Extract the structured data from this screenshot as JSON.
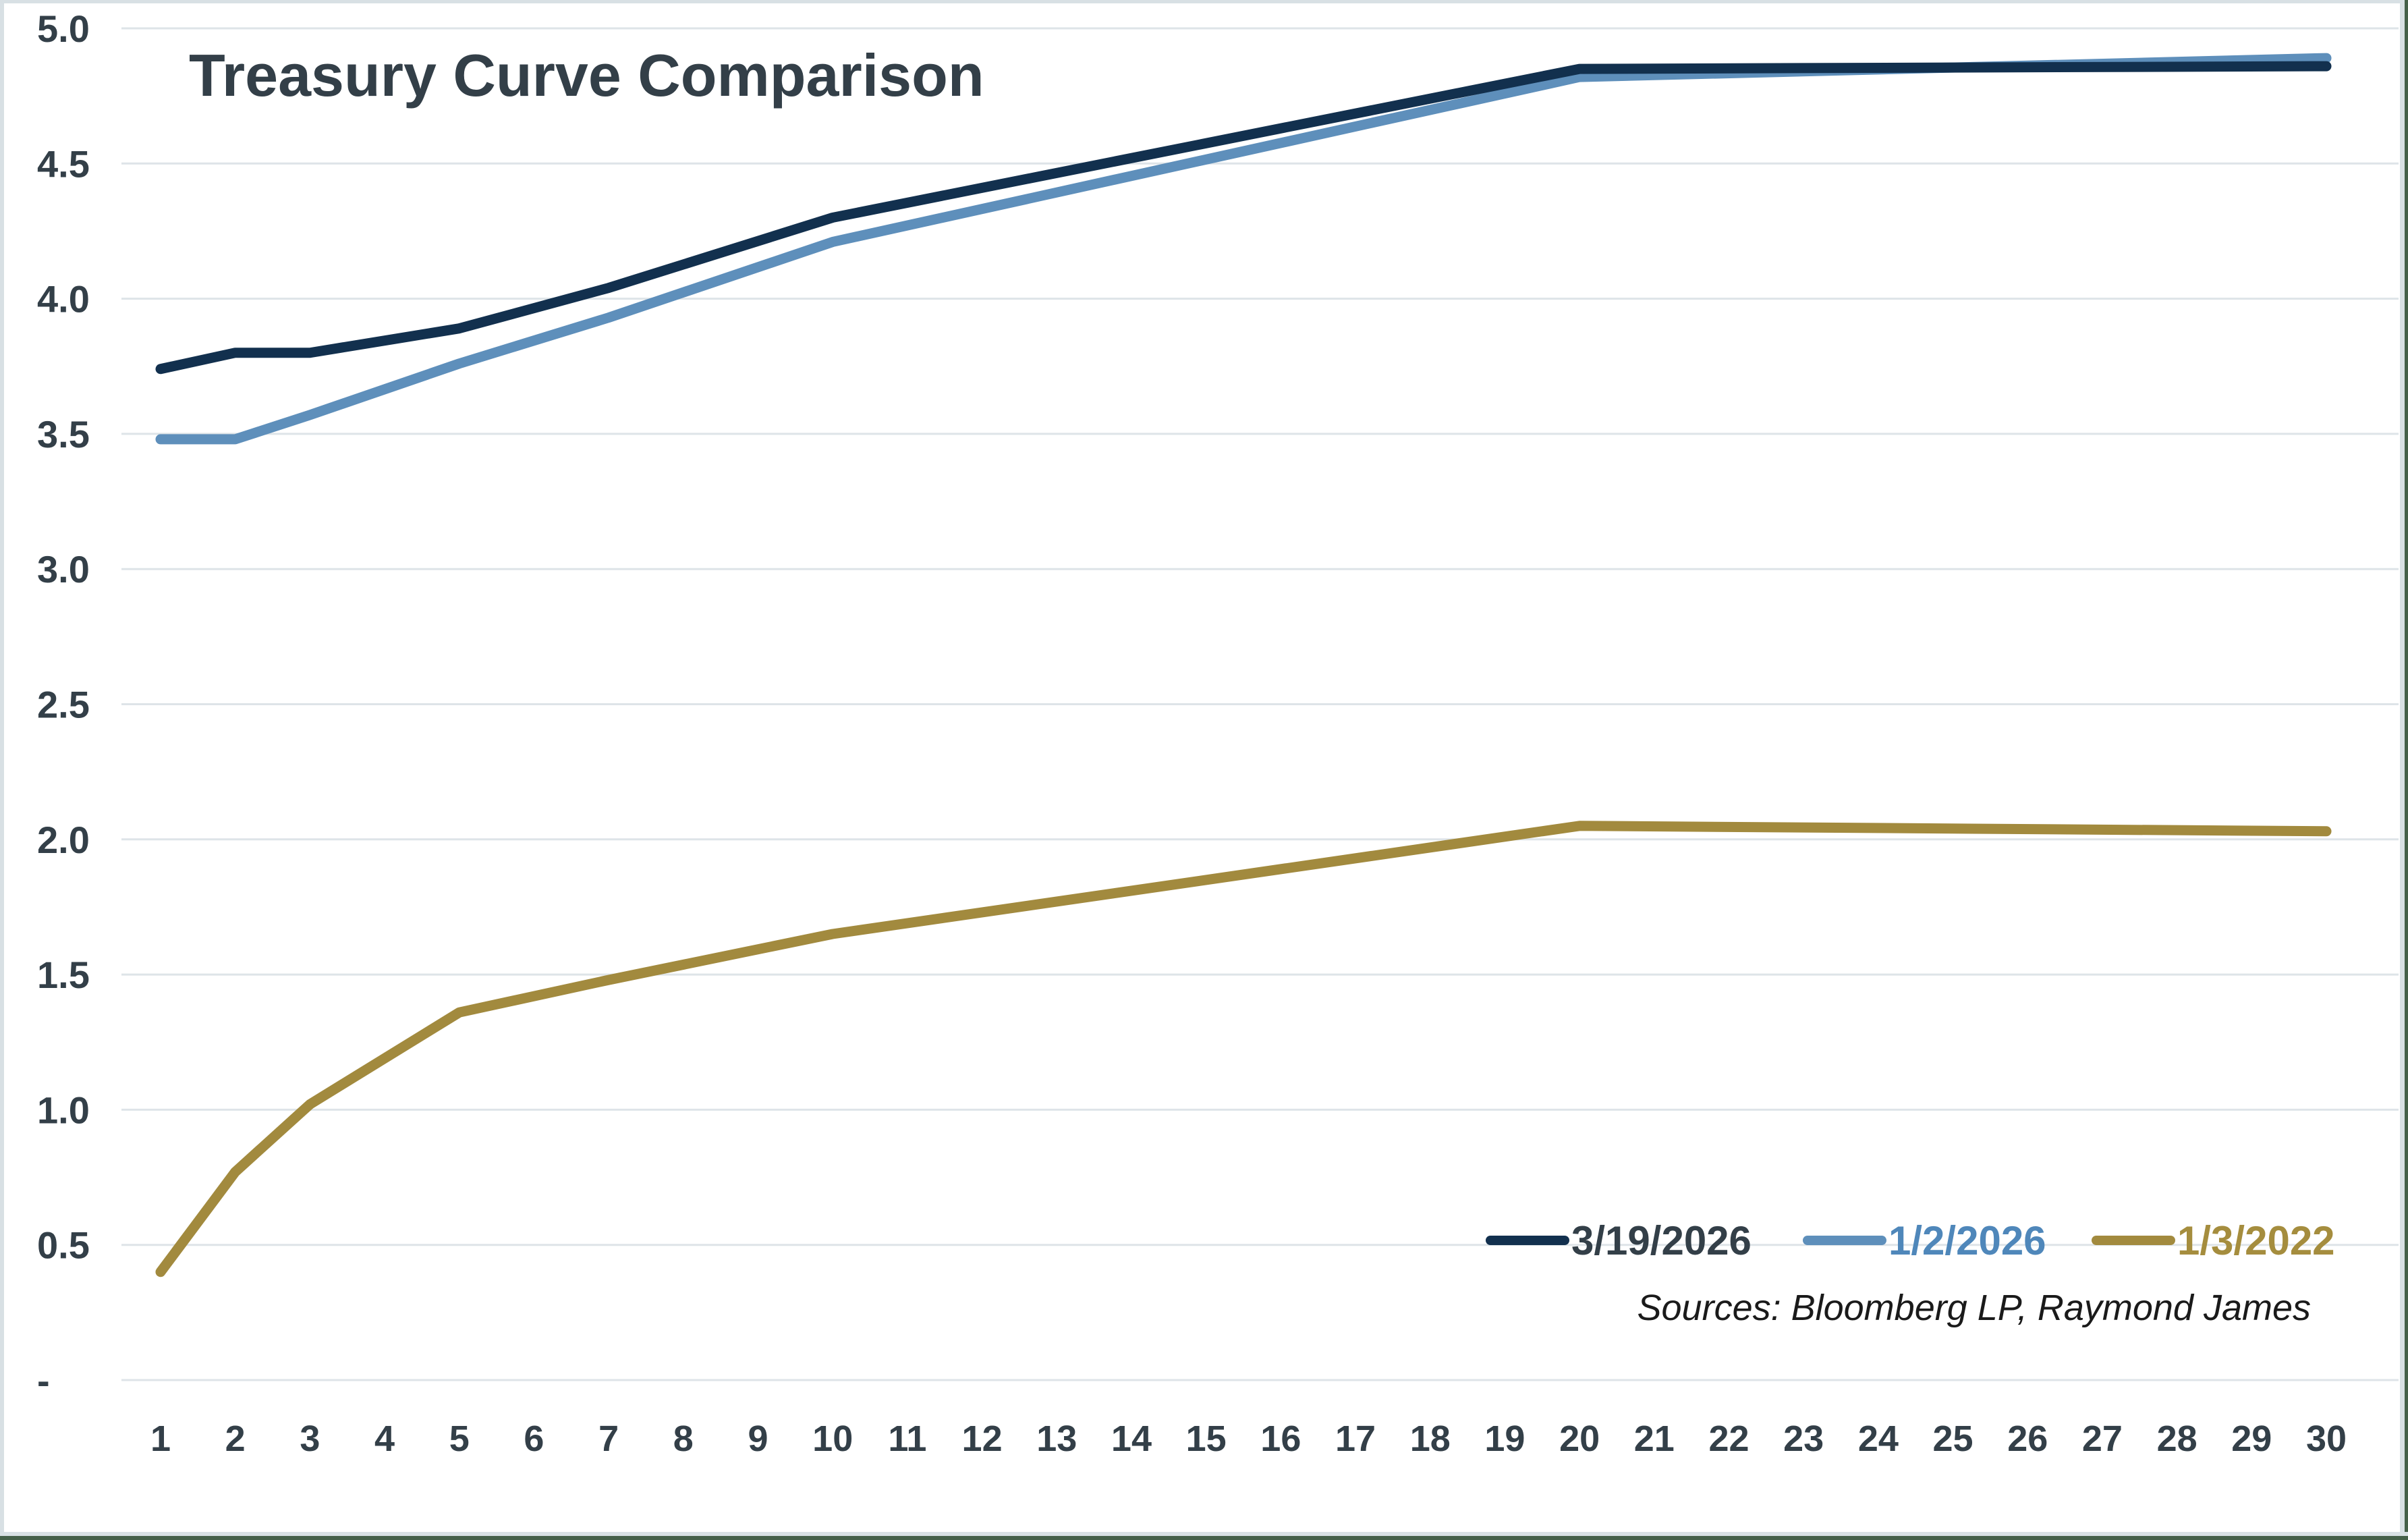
{
  "frame": {
    "light": "#D8E0E4",
    "dark": "#456049",
    "background": "#FFFFFF"
  },
  "chart_data": {
    "type": "line",
    "title": "Treasury Curve Comparison",
    "source_note": "Sources: Bloomberg LP, Raymond James",
    "text_color": "#333F48",
    "source_note_color": "#1A1A1A",
    "gridline_color": "#DEE4E8",
    "grid": true,
    "legend_position": "inside-lower-right",
    "xlabel": "",
    "ylabel": "",
    "x_axis": {
      "range": [
        1,
        30
      ],
      "tick_labels": [
        "1",
        "2",
        "3",
        "4",
        "5",
        "6",
        "7",
        "8",
        "9",
        "10",
        "11",
        "12",
        "13",
        "14",
        "15",
        "16",
        "17",
        "18",
        "19",
        "20",
        "21",
        "22",
        "23",
        "24",
        "25",
        "26",
        "27",
        "28",
        "29",
        "30"
      ]
    },
    "y_axis": {
      "min": 0,
      "max": 5,
      "step": 0.5,
      "tick_values": [
        5.0,
        4.5,
        4.0,
        3.5,
        3.0,
        2.5,
        2.0,
        1.5,
        1.0,
        0.5,
        0.0
      ],
      "tick_labels": [
        "5.0",
        "4.5",
        "4.0",
        "3.5",
        "3.0",
        "2.5",
        "2.0",
        "1.5",
        "1.0",
        "0.5",
        "-"
      ]
    },
    "maturities": [
      1,
      2,
      3,
      5,
      7,
      10,
      20,
      30
    ],
    "series": [
      {
        "name": "3/19/2026",
        "color": "#12304E",
        "label_color": "#333F48",
        "values": [
          3.74,
          3.8,
          3.8,
          3.89,
          4.04,
          4.3,
          4.85,
          4.86
        ]
      },
      {
        "name": "1/2/2026",
        "color": "#5E8FBB",
        "label_color": "#4F87BA",
        "values": [
          3.48,
          3.48,
          3.57,
          3.76,
          3.93,
          4.21,
          4.82,
          4.89
        ]
      },
      {
        "name": "1/3/2022",
        "color": "#A28A3E",
        "label_color": "#A58D3E",
        "values": [
          0.4,
          0.77,
          1.02,
          1.36,
          1.48,
          1.65,
          2.05,
          2.03
        ]
      }
    ]
  }
}
